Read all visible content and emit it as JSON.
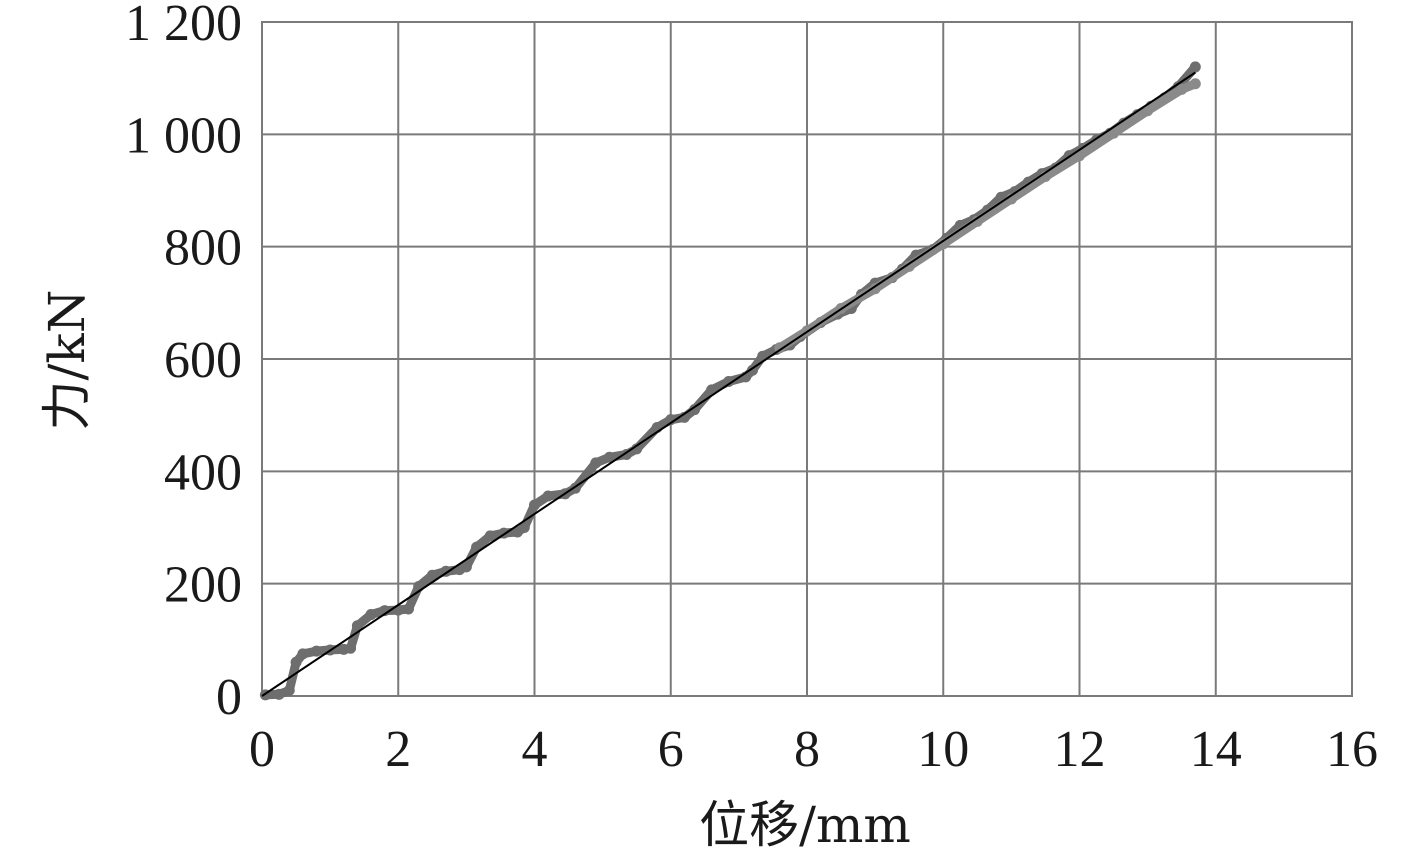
{
  "chart_data": {
    "type": "scatter",
    "xlabel": "位移/mm",
    "ylabel": "力/kN",
    "xlim": [
      0,
      16
    ],
    "ylim": [
      0,
      1200
    ],
    "x_ticks": [
      0,
      2,
      4,
      6,
      8,
      10,
      12,
      14,
      16
    ],
    "x_tick_labels": [
      "0",
      "2",
      "4",
      "6",
      "8",
      "10",
      "12",
      "14",
      "16"
    ],
    "y_ticks": [
      0,
      200,
      400,
      600,
      800,
      1000,
      1200
    ],
    "y_tick_labels": [
      "0",
      "200",
      "400",
      "600",
      "800",
      "1 000",
      "1 200"
    ],
    "grid": true,
    "series": [
      {
        "style": "markers",
        "color": "#6e6e6e",
        "points": [
          [
            0.05,
            2
          ],
          [
            0.25,
            3
          ],
          [
            0.4,
            10
          ],
          [
            0.5,
            60
          ],
          [
            0.6,
            75
          ],
          [
            0.8,
            80
          ],
          [
            1.0,
            82
          ],
          [
            1.2,
            83
          ],
          [
            1.3,
            85
          ],
          [
            1.4,
            125
          ],
          [
            1.6,
            145
          ],
          [
            1.8,
            152
          ],
          [
            2.0,
            153
          ],
          [
            2.15,
            155
          ],
          [
            2.3,
            195
          ],
          [
            2.5,
            215
          ],
          [
            2.7,
            222
          ],
          [
            2.9,
            225
          ],
          [
            3.0,
            230
          ],
          [
            3.15,
            265
          ],
          [
            3.35,
            285
          ],
          [
            3.55,
            290
          ],
          [
            3.75,
            292
          ],
          [
            3.85,
            300
          ],
          [
            4.0,
            340
          ],
          [
            4.2,
            356
          ],
          [
            4.45,
            360
          ],
          [
            4.6,
            370
          ],
          [
            4.9,
            415
          ],
          [
            5.1,
            425
          ],
          [
            5.35,
            430
          ],
          [
            5.5,
            440
          ],
          [
            5.8,
            478
          ],
          [
            6.0,
            492
          ],
          [
            6.2,
            496
          ],
          [
            6.35,
            510
          ],
          [
            6.6,
            545
          ],
          [
            6.85,
            560
          ],
          [
            7.1,
            568
          ],
          [
            7.2,
            580
          ],
          [
            7.35,
            605
          ],
          [
            7.55,
            617
          ],
          [
            7.75,
            625
          ],
          [
            7.9,
            640
          ],
          [
            8.2,
            665
          ],
          [
            8.45,
            680
          ],
          [
            8.65,
            690
          ],
          [
            8.8,
            715
          ],
          [
            9.0,
            735
          ],
          [
            9.25,
            745
          ],
          [
            9.4,
            760
          ],
          [
            9.6,
            785
          ],
          [
            9.85,
            795
          ],
          [
            10.05,
            815
          ],
          [
            10.25,
            838
          ],
          [
            10.45,
            848
          ],
          [
            10.65,
            865
          ],
          [
            10.85,
            888
          ],
          [
            11.05,
            898
          ],
          [
            11.25,
            915
          ],
          [
            11.45,
            930
          ],
          [
            11.65,
            940
          ],
          [
            11.85,
            962
          ],
          [
            12.05,
            975
          ],
          [
            12.25,
            990
          ],
          [
            12.45,
            1002
          ],
          [
            12.65,
            1020
          ],
          [
            12.85,
            1035
          ],
          [
            13.05,
            1050
          ],
          [
            13.25,
            1065
          ],
          [
            13.45,
            1085
          ],
          [
            13.7,
            1120
          ]
        ]
      },
      {
        "style": "markers",
        "color": "#8a8a8a",
        "points": [
          [
            7.6,
            620
          ],
          [
            8.0,
            650
          ],
          [
            8.5,
            690
          ],
          [
            9.0,
            725
          ],
          [
            9.5,
            765
          ],
          [
            10.0,
            805
          ],
          [
            10.5,
            845
          ],
          [
            11.0,
            885
          ],
          [
            11.5,
            925
          ],
          [
            12.0,
            962
          ],
          [
            12.5,
            1002
          ],
          [
            13.0,
            1042
          ],
          [
            13.5,
            1080
          ],
          [
            13.7,
            1090
          ]
        ]
      },
      {
        "style": "line",
        "color": "#000000",
        "x": [
          0,
          13.7
        ],
        "y": [
          0,
          1110
        ]
      }
    ]
  }
}
